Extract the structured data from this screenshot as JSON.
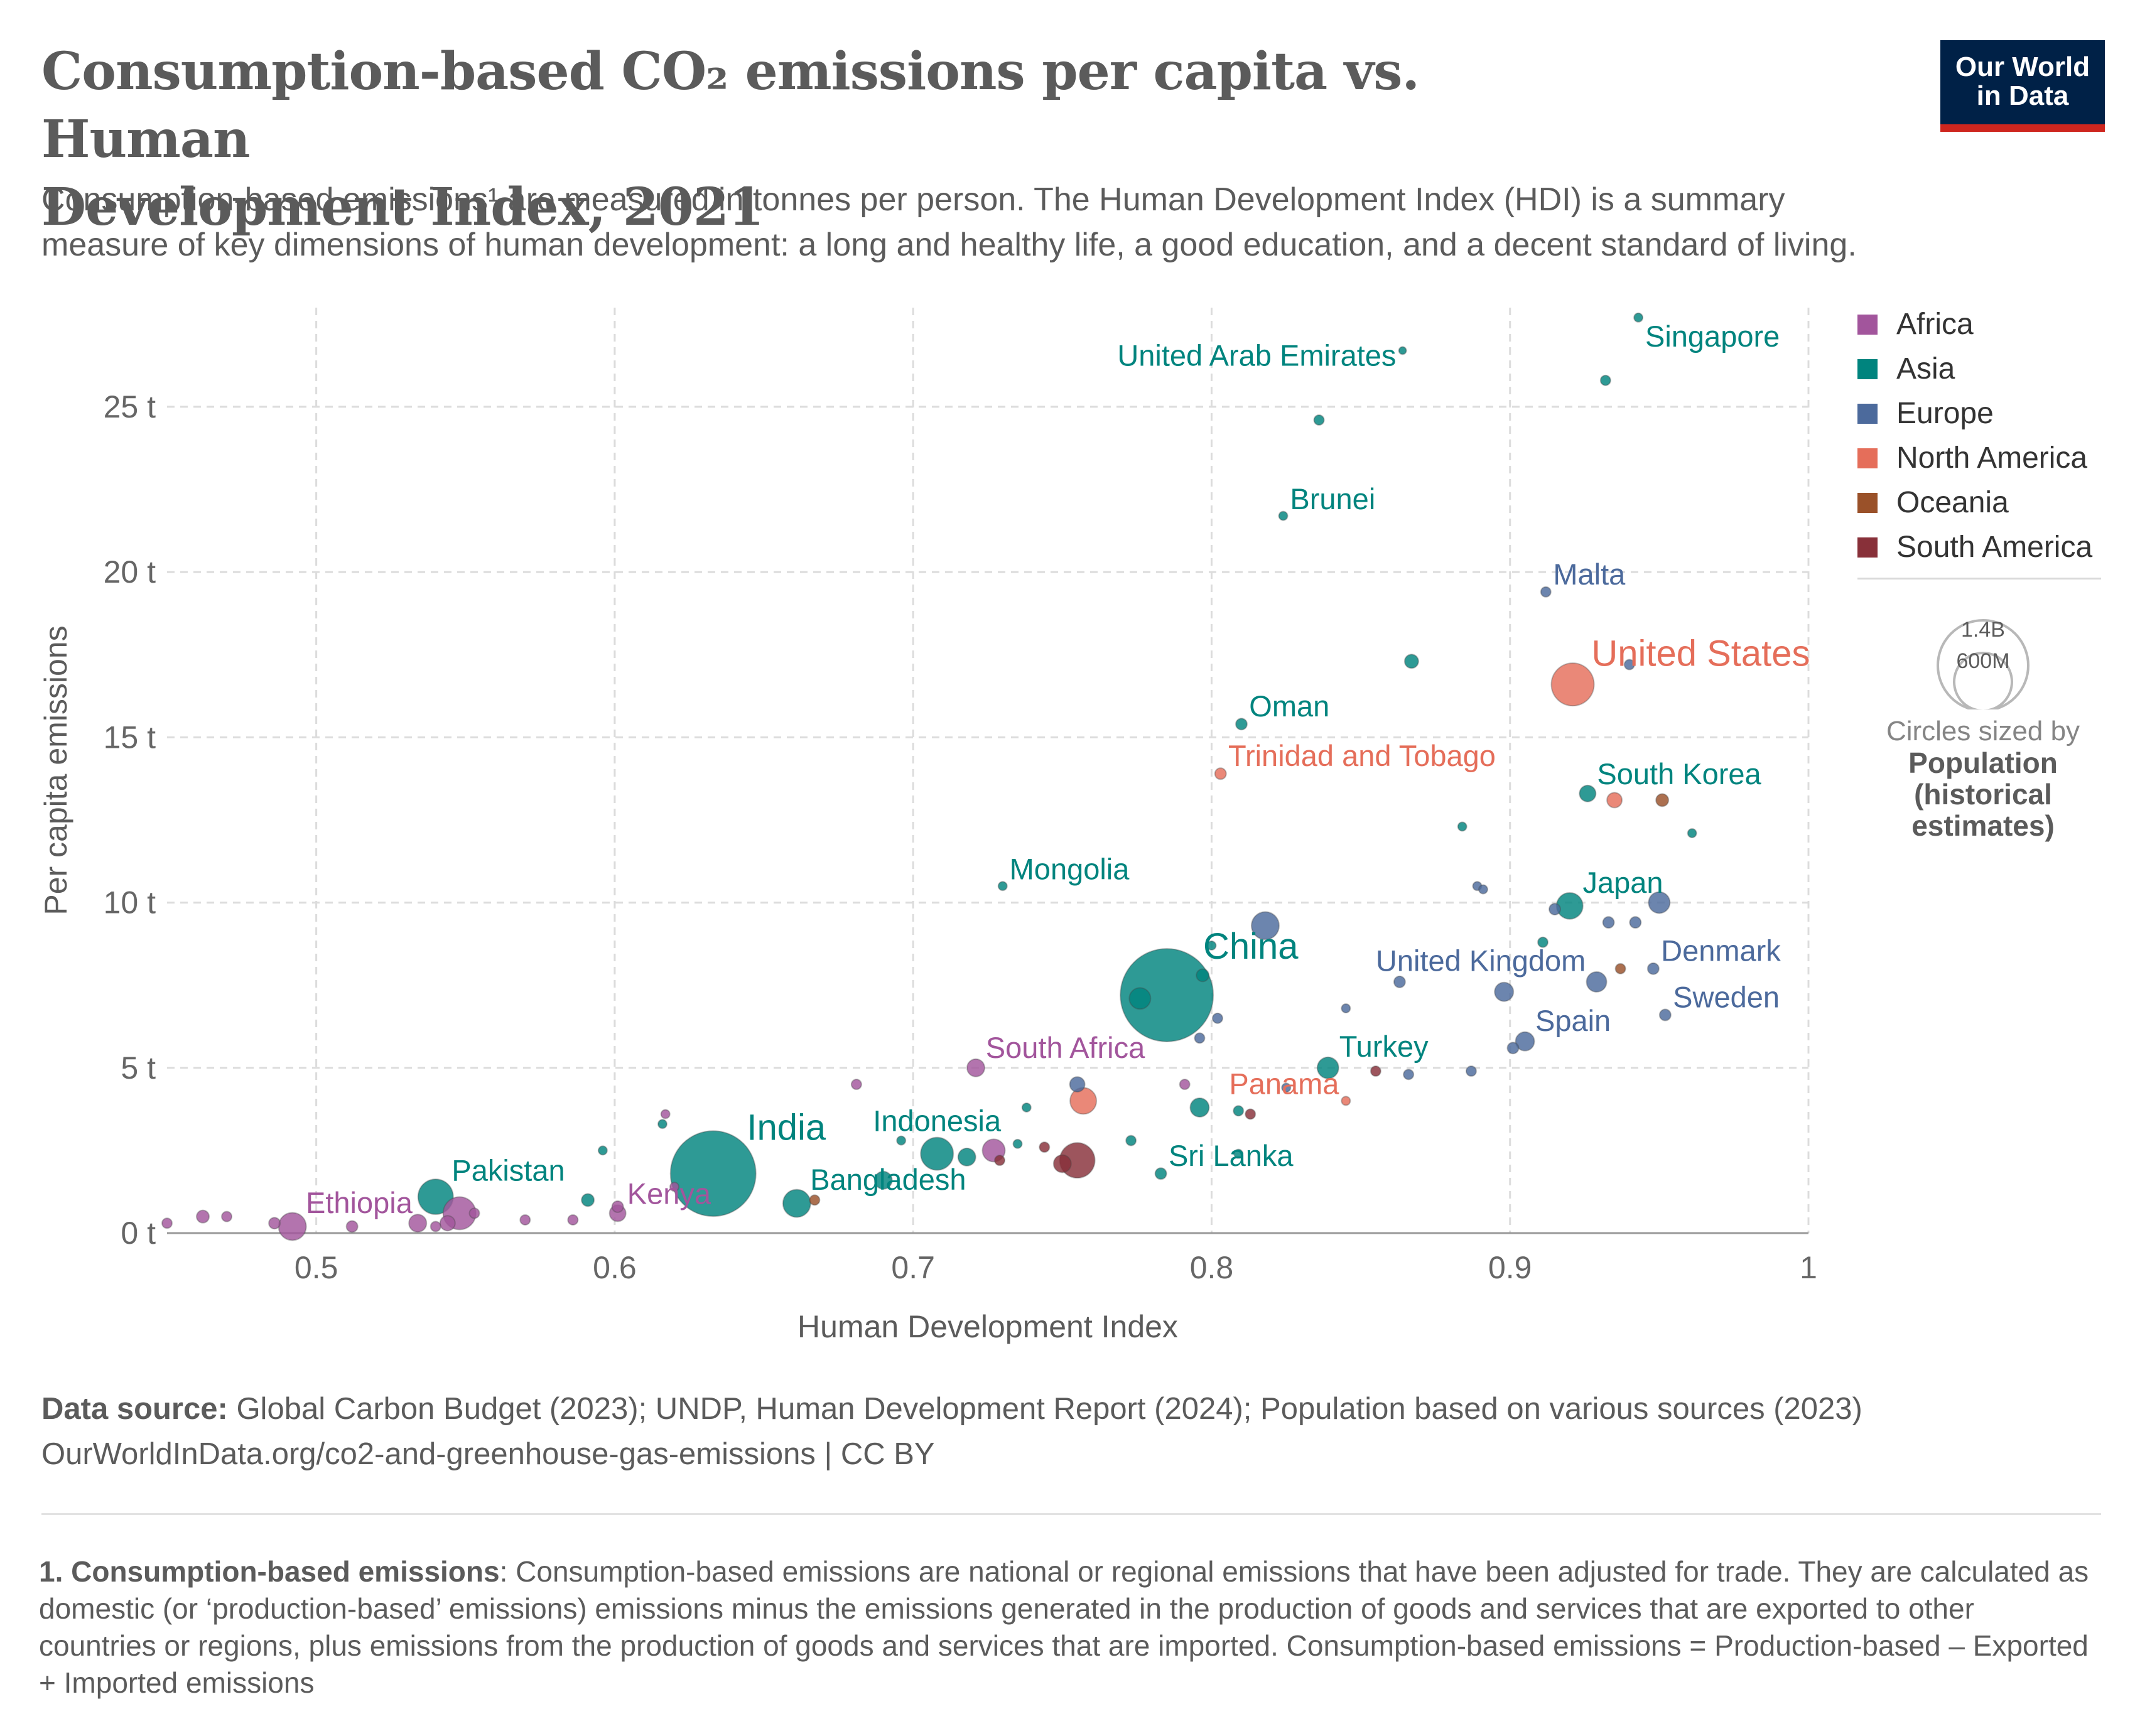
{
  "header": {
    "title_line1": "Consumption-based CO₂ emissions per capita vs. Human",
    "title_line2": "Development Index, 2021",
    "subtitle_line1": "Consumption-based emissions¹ are measured in tonnes per person. The Human Development Index (HDI) is a summary",
    "subtitle_line2": "measure of key dimensions of human development: a long and healthy life, a good education, and a decent standard of living."
  },
  "logo": {
    "line1": "Our World",
    "line2": "in Data"
  },
  "legend": {
    "items": [
      {
        "label": "Africa",
        "color": "#a2559c"
      },
      {
        "label": "Asia",
        "color": "#00847e"
      },
      {
        "label": "Europe",
        "color": "#4c6a9c"
      },
      {
        "label": "North America",
        "color": "#e56e5a"
      },
      {
        "label": "Oceania",
        "color": "#9a5129"
      },
      {
        "label": "South America",
        "color": "#883039"
      }
    ],
    "size_big": "1.4B",
    "size_small": "600M",
    "size_caption": "Circles sized by",
    "size_variable_line1": "Population",
    "size_variable_line2": "(historical",
    "size_variable_line3": "estimates)"
  },
  "footer": {
    "source_label": "Data source:",
    "source_text": " Global Carbon Budget (2023); UNDP, Human Development Report (2024); Population based on various sources (2023)",
    "url_line": "OurWorldInData.org/co2-and-greenhouse-gas-emissions | CC BY"
  },
  "note": {
    "label": "1. Consumption-based emissions",
    "text": ": Consumption-based emissions are national or regional emissions that have been adjusted for trade. They are calculated as domestic (or ‘production-based’ emissions) emissions minus the emissions generated in the production of goods and services that are exported to other countries or regions, plus emissions from the production of goods and services that are imported. Consumption-based emissions = Production-based – Exported + Imported emissions"
  },
  "chart_data": {
    "type": "scatter",
    "xlabel": "Human Development Index",
    "ylabel": "Per capita emissions",
    "xlim": [
      0.45,
      1.0
    ],
    "ylim": [
      0,
      28
    ],
    "x_ticks": [
      {
        "value": 0.5,
        "label": "0.5"
      },
      {
        "value": 0.6,
        "label": "0.6"
      },
      {
        "value": 0.7,
        "label": "0.7"
      },
      {
        "value": 0.8,
        "label": "0.8"
      },
      {
        "value": 0.9,
        "label": "0.9"
      },
      {
        "value": 1.0,
        "label": "1"
      }
    ],
    "y_ticks": [
      {
        "value": 0,
        "label": "0 t"
      },
      {
        "value": 5,
        "label": "5 t"
      },
      {
        "value": 10,
        "label": "10 t"
      },
      {
        "value": 15,
        "label": "15 t"
      },
      {
        "value": 20,
        "label": "20 t"
      },
      {
        "value": 25,
        "label": "25 t"
      }
    ],
    "grid": true,
    "legend_position": "right",
    "points": [
      {
        "x": 0.943,
        "y": 27.7,
        "r": 7,
        "region": "Asia",
        "label": "Singapore",
        "label_pos": "se"
      },
      {
        "x": 0.864,
        "y": 26.7,
        "r": 6,
        "region": "Asia",
        "label": "United Arab Emirates",
        "label_pos": "sw"
      },
      {
        "x": 0.932,
        "y": 25.8,
        "r": 8,
        "region": "Asia"
      },
      {
        "x": 0.836,
        "y": 24.6,
        "r": 8,
        "region": "Asia"
      },
      {
        "x": 0.824,
        "y": 21.7,
        "r": 7,
        "region": "Asia",
        "label": "Brunei",
        "label_pos": "ne"
      },
      {
        "x": 0.912,
        "y": 19.4,
        "r": 8,
        "region": "Europe",
        "label": "Malta",
        "label_pos": "ne"
      },
      {
        "x": 0.867,
        "y": 17.3,
        "r": 11,
        "region": "Asia"
      },
      {
        "x": 0.94,
        "y": 17.2,
        "r": 8,
        "region": "Europe"
      },
      {
        "x": 0.921,
        "y": 16.6,
        "r": 34,
        "region": "North America",
        "label": "United States",
        "label_pos": "ne",
        "label_size": "big"
      },
      {
        "x": 0.81,
        "y": 15.4,
        "r": 9,
        "region": "Asia",
        "label": "Oman",
        "label_pos": "ne"
      },
      {
        "x": 0.803,
        "y": 13.9,
        "r": 9,
        "region": "North America",
        "label": "Trinidad and Tobago",
        "label_pos": "ne"
      },
      {
        "x": 0.926,
        "y": 13.3,
        "r": 13,
        "region": "Asia",
        "label": "South Korea",
        "label_pos": "ne"
      },
      {
        "x": 0.935,
        "y": 13.1,
        "r": 12,
        "region": "North America"
      },
      {
        "x": 0.951,
        "y": 13.1,
        "r": 10,
        "region": "Oceania"
      },
      {
        "x": 0.961,
        "y": 12.1,
        "r": 7,
        "region": "Asia"
      },
      {
        "x": 0.884,
        "y": 12.3,
        "r": 7,
        "region": "Asia"
      },
      {
        "x": 0.73,
        "y": 10.5,
        "r": 7,
        "region": "Asia",
        "label": "Mongolia",
        "label_pos": "ne"
      },
      {
        "x": 0.889,
        "y": 10.5,
        "r": 7,
        "region": "Europe"
      },
      {
        "x": 0.891,
        "y": 10.4,
        "r": 7,
        "region": "Europe"
      },
      {
        "x": 0.92,
        "y": 9.9,
        "r": 21,
        "region": "Asia",
        "label": "Japan",
        "label_pos": "ne"
      },
      {
        "x": 0.915,
        "y": 9.8,
        "r": 9,
        "region": "Europe"
      },
      {
        "x": 0.95,
        "y": 10.0,
        "r": 17,
        "region": "Europe"
      },
      {
        "x": 0.933,
        "y": 9.4,
        "r": 9,
        "region": "Europe"
      },
      {
        "x": 0.942,
        "y": 9.4,
        "r": 9,
        "region": "Europe"
      },
      {
        "x": 0.818,
        "y": 9.3,
        "r": 22,
        "region": "Europe"
      },
      {
        "x": 0.8,
        "y": 8.7,
        "r": 7,
        "region": "Asia"
      },
      {
        "x": 0.911,
        "y": 8.8,
        "r": 8,
        "region": "Asia"
      },
      {
        "x": 0.785,
        "y": 7.2,
        "r": 74,
        "region": "Asia",
        "label": "China",
        "label_pos": "ne",
        "label_size": "big"
      },
      {
        "x": 0.776,
        "y": 7.1,
        "r": 17,
        "region": "Asia"
      },
      {
        "x": 0.797,
        "y": 7.8,
        "r": 10,
        "region": "Asia"
      },
      {
        "x": 0.929,
        "y": 7.6,
        "r": 16,
        "region": "Europe",
        "label": "United Kingdom",
        "label_pos": "nw"
      },
      {
        "x": 0.948,
        "y": 8.0,
        "r": 9,
        "region": "Europe",
        "label": "Denmark",
        "label_pos": "ne"
      },
      {
        "x": 0.937,
        "y": 8.0,
        "r": 8,
        "region": "Oceania"
      },
      {
        "x": 0.863,
        "y": 7.6,
        "r": 9,
        "region": "Europe"
      },
      {
        "x": 0.898,
        "y": 7.3,
        "r": 15,
        "region": "Europe"
      },
      {
        "x": 0.845,
        "y": 6.8,
        "r": 7,
        "region": "Europe"
      },
      {
        "x": 0.952,
        "y": 6.6,
        "r": 9,
        "region": "Europe",
        "label": "Sweden",
        "label_pos": "ne"
      },
      {
        "x": 0.802,
        "y": 6.5,
        "r": 8,
        "region": "Europe"
      },
      {
        "x": 0.905,
        "y": 5.8,
        "r": 15,
        "region": "Europe",
        "label": "Spain",
        "label_pos": "ne"
      },
      {
        "x": 0.901,
        "y": 5.6,
        "r": 9,
        "region": "Europe"
      },
      {
        "x": 0.796,
        "y": 5.9,
        "r": 8,
        "region": "Europe"
      },
      {
        "x": 0.721,
        "y": 5.0,
        "r": 14,
        "region": "Africa",
        "label": "South Africa",
        "label_pos": "ne"
      },
      {
        "x": 0.839,
        "y": 5.0,
        "r": 17,
        "region": "Asia",
        "label": "Turkey",
        "label_pos": "ne"
      },
      {
        "x": 0.855,
        "y": 4.9,
        "r": 8,
        "region": "South America"
      },
      {
        "x": 0.866,
        "y": 4.8,
        "r": 8,
        "region": "Europe"
      },
      {
        "x": 0.887,
        "y": 4.9,
        "r": 8,
        "region": "Europe"
      },
      {
        "x": 0.681,
        "y": 4.5,
        "r": 8,
        "region": "Africa"
      },
      {
        "x": 0.791,
        "y": 4.5,
        "r": 8,
        "region": "Africa"
      },
      {
        "x": 0.755,
        "y": 4.5,
        "r": 12,
        "region": "Europe"
      },
      {
        "x": 0.757,
        "y": 4.0,
        "r": 21,
        "region": "North America"
      },
      {
        "x": 0.825,
        "y": 4.4,
        "r": 7,
        "region": "Europe"
      },
      {
        "x": 0.796,
        "y": 3.8,
        "r": 15,
        "region": "Asia"
      },
      {
        "x": 0.845,
        "y": 4.0,
        "r": 7,
        "region": "North America",
        "label": "Panama",
        "label_pos": "nw"
      },
      {
        "x": 0.809,
        "y": 3.7,
        "r": 8,
        "region": "Asia"
      },
      {
        "x": 0.813,
        "y": 3.6,
        "r": 8,
        "region": "South America"
      },
      {
        "x": 0.738,
        "y": 3.8,
        "r": 7,
        "region": "Asia"
      },
      {
        "x": 0.617,
        "y": 3.6,
        "r": 7,
        "region": "Africa"
      },
      {
        "x": 0.616,
        "y": 3.3,
        "r": 7,
        "region": "Asia"
      },
      {
        "x": 0.633,
        "y": 1.8,
        "r": 68,
        "region": "Asia",
        "label": "India",
        "label_pos": "ne",
        "label_size": "big"
      },
      {
        "x": 0.708,
        "y": 2.4,
        "r": 26,
        "region": "Asia",
        "label": "Indonesia",
        "label_pos": "n"
      },
      {
        "x": 0.718,
        "y": 2.3,
        "r": 14,
        "region": "Asia"
      },
      {
        "x": 0.727,
        "y": 2.5,
        "r": 18,
        "region": "Africa"
      },
      {
        "x": 0.744,
        "y": 2.6,
        "r": 8,
        "region": "South America"
      },
      {
        "x": 0.755,
        "y": 2.2,
        "r": 28,
        "region": "South America"
      },
      {
        "x": 0.75,
        "y": 2.1,
        "r": 14,
        "region": "South America"
      },
      {
        "x": 0.773,
        "y": 2.8,
        "r": 8,
        "region": "Asia"
      },
      {
        "x": 0.696,
        "y": 2.8,
        "r": 7,
        "region": "Asia"
      },
      {
        "x": 0.735,
        "y": 2.7,
        "r": 7,
        "region": "Asia"
      },
      {
        "x": 0.729,
        "y": 2.2,
        "r": 8,
        "region": "South America"
      },
      {
        "x": 0.783,
        "y": 1.8,
        "r": 9,
        "region": "Asia",
        "label": "Sri Lanka",
        "label_pos": "ne"
      },
      {
        "x": 0.809,
        "y": 2.4,
        "r": 7,
        "region": "Asia"
      },
      {
        "x": 0.69,
        "y": 1.6,
        "r": 14,
        "region": "Asia"
      },
      {
        "x": 0.661,
        "y": 0.9,
        "r": 22,
        "region": "Asia",
        "label": "Bangladesh",
        "label_pos": "ne"
      },
      {
        "x": 0.667,
        "y": 1.0,
        "r": 8,
        "region": "Oceania"
      },
      {
        "x": 0.54,
        "y": 1.1,
        "r": 28,
        "region": "Asia",
        "label": "Pakistan",
        "label_pos": "ne"
      },
      {
        "x": 0.591,
        "y": 1.0,
        "r": 10,
        "region": "Asia"
      },
      {
        "x": 0.601,
        "y": 0.8,
        "r": 9,
        "region": "Africa"
      },
      {
        "x": 0.596,
        "y": 2.5,
        "r": 7,
        "region": "Asia"
      },
      {
        "x": 0.601,
        "y": 0.6,
        "r": 13,
        "region": "Africa",
        "label": "Kenya",
        "label_pos": "ne"
      },
      {
        "x": 0.62,
        "y": 1.4,
        "r": 7,
        "region": "Africa"
      },
      {
        "x": 0.492,
        "y": 0.2,
        "r": 22,
        "region": "Africa",
        "label": "Ethiopia",
        "label_pos": "ne"
      },
      {
        "x": 0.548,
        "y": 0.6,
        "r": 26,
        "region": "Africa"
      },
      {
        "x": 0.544,
        "y": 0.3,
        "r": 12,
        "region": "Africa"
      },
      {
        "x": 0.534,
        "y": 0.3,
        "r": 14,
        "region": "Africa"
      },
      {
        "x": 0.512,
        "y": 0.2,
        "r": 9,
        "region": "Africa"
      },
      {
        "x": 0.462,
        "y": 0.5,
        "r": 10,
        "region": "Africa"
      },
      {
        "x": 0.47,
        "y": 0.5,
        "r": 8,
        "region": "Africa"
      },
      {
        "x": 0.45,
        "y": 0.3,
        "r": 8,
        "region": "Africa"
      },
      {
        "x": 0.486,
        "y": 0.3,
        "r": 9,
        "region": "Africa"
      },
      {
        "x": 0.553,
        "y": 0.6,
        "r": 8,
        "region": "Africa"
      },
      {
        "x": 0.57,
        "y": 0.4,
        "r": 8,
        "region": "Africa"
      },
      {
        "x": 0.586,
        "y": 0.4,
        "r": 8,
        "region": "Africa"
      },
      {
        "x": 0.54,
        "y": 0.2,
        "r": 8,
        "region": "Africa"
      }
    ]
  }
}
